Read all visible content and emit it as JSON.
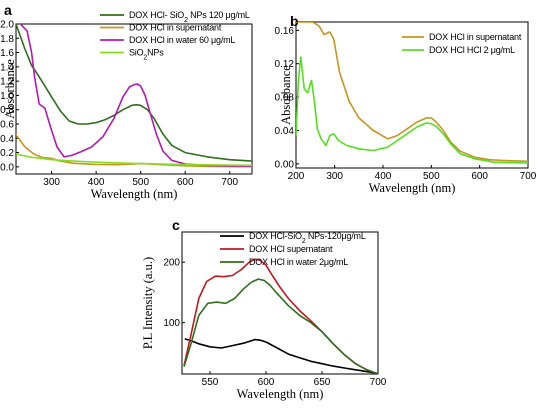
{
  "chart_data": [
    {
      "id": "a",
      "panel_label": "a",
      "type": "line",
      "xlabel": "Wavelength (nm)",
      "ylabel": "Absorbance",
      "xlim": [
        220,
        750
      ],
      "ylim": [
        -0.1,
        2.0
      ],
      "xticks": [
        300,
        400,
        500,
        600,
        700
      ],
      "yticks": [
        0.0,
        0.2,
        0.4,
        0.6,
        0.8,
        1.0,
        1.2,
        1.4,
        1.6,
        1.8,
        2.0
      ],
      "ytick_labels": [
        "0.0",
        "0.2",
        "0.4",
        "0.6",
        "0.8",
        "1.0",
        "1.2",
        "1.4",
        "1.6",
        "1.8",
        "2.0"
      ],
      "legend_position": "top-right",
      "series": [
        {
          "name": "DOX HCl- SiO2 NPs 120 μg/mL",
          "color": "#2f6e1c",
          "x": [
            220,
            240,
            255,
            270,
            285,
            300,
            320,
            340,
            360,
            380,
            400,
            420,
            440,
            460,
            480,
            490,
            500,
            515,
            530,
            550,
            570,
            600,
            650,
            700,
            750
          ],
          "y": [
            2.0,
            1.65,
            1.42,
            1.28,
            1.13,
            0.98,
            0.78,
            0.64,
            0.6,
            0.6,
            0.62,
            0.66,
            0.72,
            0.8,
            0.86,
            0.87,
            0.86,
            0.8,
            0.68,
            0.46,
            0.3,
            0.2,
            0.14,
            0.1,
            0.08
          ]
        },
        {
          "name": "DOX HCl in supernatant",
          "color": "#c8961e",
          "x": [
            220,
            240,
            260,
            280,
            300,
            320,
            350,
            400,
            450,
            500,
            550,
            600,
            650,
            700,
            750
          ],
          "y": [
            0.45,
            0.28,
            0.18,
            0.13,
            0.12,
            0.08,
            0.05,
            0.035,
            0.03,
            0.045,
            0.03,
            0.015,
            0.008,
            0.004,
            0.002
          ]
        },
        {
          "name": "DOX HCl in water 60 μg/mL",
          "color": "#b21ab2",
          "x": [
            230,
            245,
            255,
            262,
            272,
            285,
            298,
            312,
            328,
            345,
            365,
            390,
            415,
            440,
            460,
            475,
            485,
            492,
            500,
            510,
            520,
            535,
            550,
            570,
            600,
            650,
            700,
            750
          ],
          "y": [
            2.0,
            1.9,
            1.6,
            1.25,
            0.88,
            0.82,
            0.55,
            0.28,
            0.14,
            0.16,
            0.21,
            0.28,
            0.42,
            0.68,
            0.98,
            1.12,
            1.15,
            1.16,
            1.13,
            1.0,
            0.78,
            0.46,
            0.22,
            0.09,
            0.04,
            0.02,
            0.015,
            0.01
          ]
        },
        {
          "name": "SiO2NPs",
          "color": "#88dd22",
          "x": [
            220,
            250,
            300,
            350,
            400,
            450,
            500,
            550,
            600,
            650,
            700,
            750
          ],
          "y": [
            0.18,
            0.14,
            0.1,
            0.08,
            0.065,
            0.055,
            0.045,
            0.038,
            0.032,
            0.028,
            0.024,
            0.022
          ]
        }
      ]
    },
    {
      "id": "b",
      "panel_label": "b",
      "type": "line",
      "xlabel": "Wavelength (nm)",
      "ylabel": "Absorbance",
      "xlim": [
        220,
        700
      ],
      "ylim": [
        -0.005,
        0.17
      ],
      "xticks": [
        200,
        300,
        400,
        500,
        600,
        700
      ],
      "yticks": [
        0.0,
        0.04,
        0.08,
        0.12,
        0.16
      ],
      "ytick_labels": [
        "0.00",
        "0.04",
        "0.08",
        "0.12",
        "0.16"
      ],
      "legend_position": "top-right",
      "series": [
        {
          "name": "DOX HCl in supernatant",
          "color": "#c8961e",
          "x": [
            220,
            255,
            268,
            278,
            290,
            298,
            310,
            330,
            350,
            380,
            410,
            430,
            450,
            470,
            490,
            500,
            510,
            525,
            540,
            560,
            590,
            620,
            650,
            700
          ],
          "y": [
            0.17,
            0.17,
            0.165,
            0.155,
            0.158,
            0.15,
            0.11,
            0.075,
            0.055,
            0.04,
            0.03,
            0.034,
            0.042,
            0.05,
            0.055,
            0.055,
            0.05,
            0.04,
            0.026,
            0.015,
            0.008,
            0.005,
            0.004,
            0.003
          ]
        },
        {
          "name": "DOX HCl HCl 2 μg/mL",
          "color": "#55dd22",
          "x": [
            220,
            225,
            230,
            237,
            244,
            252,
            258,
            264,
            272,
            282,
            290,
            298,
            308,
            325,
            350,
            380,
            410,
            440,
            470,
            490,
            500,
            510,
            525,
            540,
            560,
            590,
            630,
            700
          ],
          "y": [
            0.035,
            0.1,
            0.128,
            0.09,
            0.085,
            0.1,
            0.075,
            0.042,
            0.03,
            0.022,
            0.034,
            0.036,
            0.028,
            0.022,
            0.018,
            0.016,
            0.02,
            0.032,
            0.044,
            0.049,
            0.048,
            0.045,
            0.036,
            0.024,
            0.012,
            0.006,
            0.002,
            0.001
          ]
        }
      ]
    },
    {
      "id": "c",
      "panel_label": "c",
      "type": "line",
      "xlabel": "Wavelength (nm)",
      "ylabel": "P.L Intensity (a.u.)",
      "xlim": [
        525,
        700
      ],
      "ylim": [
        15,
        250
      ],
      "xticks": [
        550,
        600,
        650,
        700
      ],
      "yticks": [
        100,
        200
      ],
      "ytick_labels": [
        "100",
        "200"
      ],
      "legend_position": "top-right",
      "series": [
        {
          "name": "DOX HCl-SiO2 NPs-120μg/mL",
          "color": "#000000",
          "x": [
            528,
            533,
            540,
            550,
            560,
            570,
            580,
            590,
            595,
            600,
            610,
            620,
            630,
            640,
            650,
            660,
            670,
            680,
            690,
            700
          ],
          "y": [
            73,
            70,
            65,
            60,
            58,
            62,
            66,
            72,
            71,
            68,
            58,
            48,
            42,
            36,
            32,
            28,
            25,
            22,
            19,
            16
          ]
        },
        {
          "name": "DOX HCl supernatant",
          "color": "#c0191e",
          "x": [
            527,
            533,
            540,
            547,
            555,
            562,
            570,
            578,
            585,
            590,
            595,
            600,
            605,
            612,
            620,
            630,
            640,
            650,
            660,
            670,
            680,
            690,
            700
          ],
          "y": [
            30,
            80,
            140,
            168,
            177,
            176,
            178,
            188,
            200,
            205,
            203,
            195,
            180,
            160,
            140,
            120,
            103,
            85,
            65,
            47,
            32,
            22,
            15
          ]
        },
        {
          "name": "DOX HCl in water 2μg/mL",
          "color": "#2f6e1c",
          "x": [
            527,
            533,
            540,
            548,
            556,
            564,
            572,
            580,
            587,
            593,
            598,
            603,
            610,
            620,
            630,
            640,
            650,
            660,
            670,
            680,
            690,
            700
          ],
          "y": [
            28,
            65,
            112,
            132,
            134,
            132,
            140,
            156,
            167,
            172,
            170,
            163,
            148,
            128,
            112,
            100,
            85,
            65,
            47,
            32,
            22,
            15
          ]
        }
      ]
    }
  ]
}
